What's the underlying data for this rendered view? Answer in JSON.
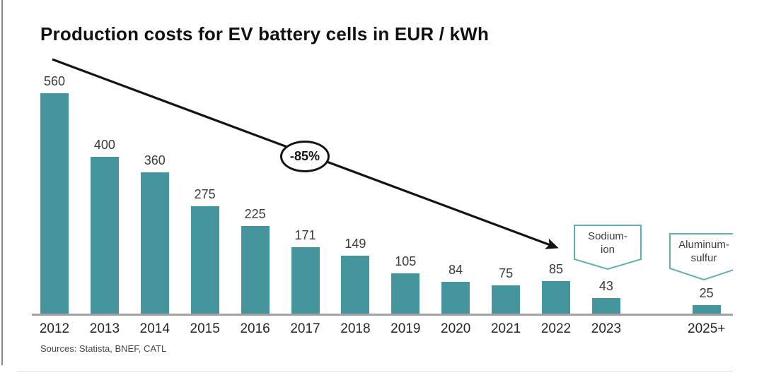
{
  "title": "Production costs for EV battery cells in EUR / kWh",
  "source_note": "Sources: Statista, BNEF, CATL",
  "decline_badge_label": "-85%",
  "callouts": {
    "sodium": {
      "line1": "Sodium-",
      "line2": "ion"
    },
    "aluminum": {
      "line1": "Aluminum-",
      "line2": "sulfur"
    }
  },
  "colors": {
    "bar": "#45959C",
    "callout_border": "#63AFB5",
    "axis_line": "#A2A2A2",
    "arrow": "#141414"
  },
  "chart_data": {
    "type": "bar",
    "title": "Production costs for EV battery cells in EUR / kWh",
    "ylabel": "EUR / kWh",
    "categories": [
      "2012",
      "2013",
      "2014",
      "2015",
      "2016",
      "2017",
      "2018",
      "2019",
      "2020",
      "2021",
      "2022",
      "2023",
      "2025+"
    ],
    "values": [
      560,
      400,
      360,
      275,
      225,
      171,
      149,
      105,
      84,
      75,
      85,
      43,
      25
    ],
    "x_slots": [
      0,
      1,
      2,
      3,
      4,
      5,
      6,
      7,
      8,
      9,
      10,
      11,
      13
    ],
    "ylim": [
      0,
      600
    ],
    "grid": false,
    "legend": false,
    "value_labels_shown": true,
    "annotations": [
      {
        "type": "arrow-label",
        "text": "-85%",
        "span": "2012 to 2022"
      },
      {
        "type": "callout",
        "target": "2023",
        "text": "Sodium-ion"
      },
      {
        "type": "callout",
        "target": "2025+",
        "text": "Aluminum-sulfur"
      }
    ]
  }
}
